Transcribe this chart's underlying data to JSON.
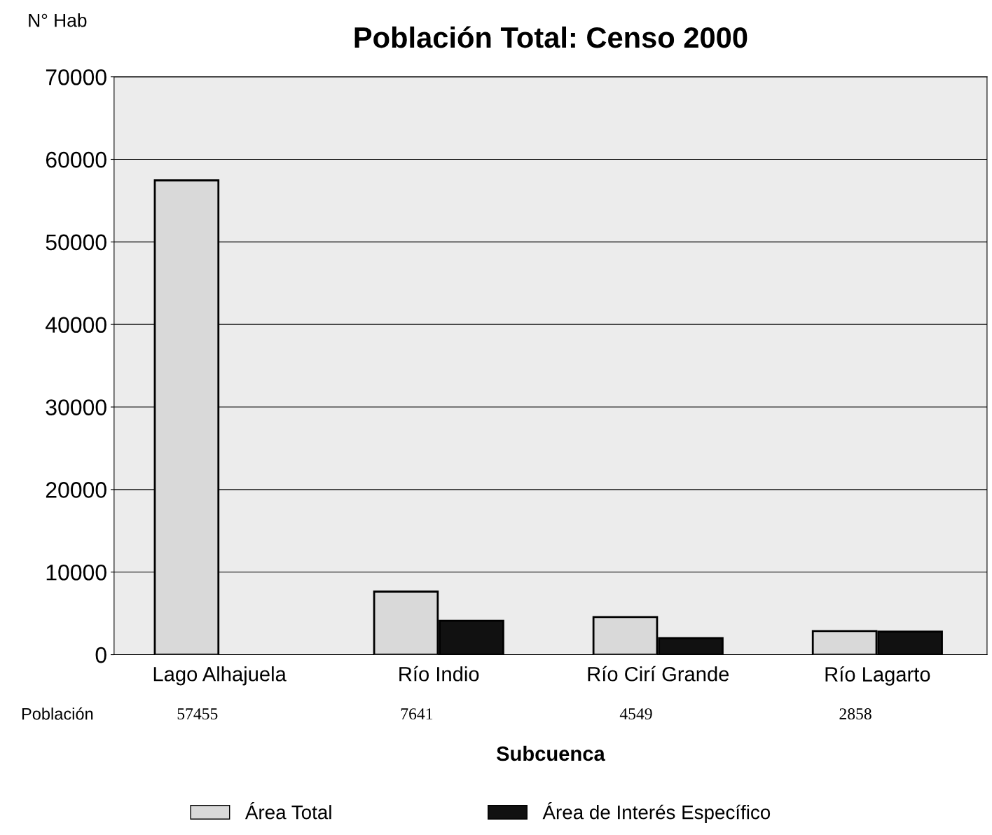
{
  "chart_data": {
    "type": "bar",
    "title": "Población Total: Censo 2000",
    "xlabel": "Subcuenca",
    "ylabel": "N° Hab",
    "categories": [
      "Lago Alhajuela",
      "Río Indio",
      "Río Cirí Grande",
      "Río Lagarto"
    ],
    "series": [
      {
        "name": "Área Total",
        "color": "#d9d9d9",
        "values": [
          57455,
          7641,
          4549,
          2858
        ],
        "value_labels": [
          "57455",
          "7641",
          "4549",
          "2858"
        ]
      },
      {
        "name": "Área de Interés Específico",
        "color": "#111111",
        "values": [
          null,
          4100,
          2000,
          2800
        ]
      }
    ],
    "annotations": [
      "Población"
    ],
    "ylim": [
      0,
      70000
    ],
    "yticks": [
      0,
      10000,
      20000,
      30000,
      40000,
      50000,
      60000,
      70000
    ],
    "grid": "y",
    "legend": "bottom"
  }
}
